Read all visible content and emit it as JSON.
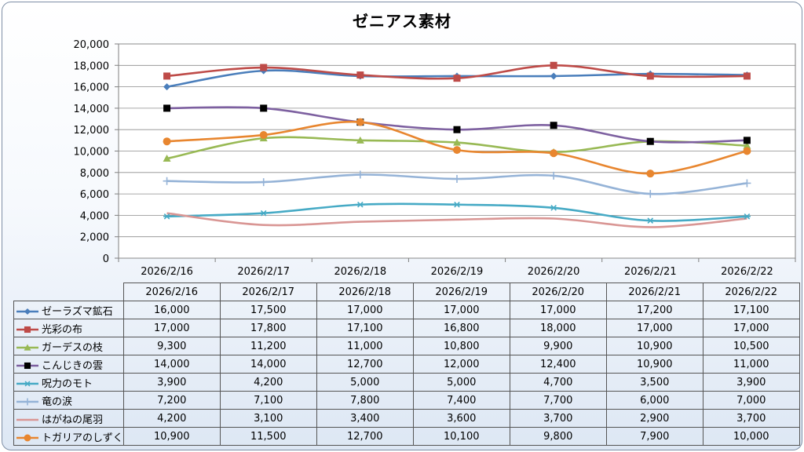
{
  "chart_data": {
    "type": "line",
    "title": "ゼニアス素材",
    "categories": [
      "2026/2/16",
      "2026/2/17",
      "2026/2/18",
      "2026/2/19",
      "2026/2/20",
      "2026/2/21",
      "2026/2/22"
    ],
    "ylim": [
      0,
      20000
    ],
    "yticks": [
      0,
      2000,
      4000,
      6000,
      8000,
      10000,
      12000,
      14000,
      16000,
      18000,
      20000
    ],
    "ytick_labels": [
      "0",
      "2,000",
      "4,000",
      "6,000",
      "8,000",
      "10,000",
      "12,000",
      "14,000",
      "16,000",
      "18,000",
      "20,000"
    ],
    "grid": true,
    "legend": "data-table",
    "series": [
      {
        "name": "ゼーラズマ鉱石",
        "color": "#4a7ebb",
        "marker": "diamond",
        "values": [
          16000,
          17500,
          17000,
          17000,
          17000,
          17200,
          17100
        ],
        "labels": [
          "16,000",
          "17,500",
          "17,000",
          "17,000",
          "17,000",
          "17,200",
          "17,100"
        ]
      },
      {
        "name": "光彩の布",
        "color": "#be4b48",
        "marker": "square",
        "values": [
          17000,
          17800,
          17100,
          16800,
          18000,
          17000,
          17000
        ],
        "labels": [
          "17,000",
          "17,800",
          "17,100",
          "16,800",
          "18,000",
          "17,000",
          "17,000"
        ]
      },
      {
        "name": "ガーデスの枝",
        "color": "#98b954",
        "marker": "triangle",
        "values": [
          9300,
          11200,
          11000,
          10800,
          9900,
          10900,
          10500
        ],
        "labels": [
          "9,300",
          "11,200",
          "11,000",
          "10,800",
          "9,900",
          "10,900",
          "10,500"
        ]
      },
      {
        "name": "こんじきの雲",
        "color": "#7d60a0",
        "marker": "square-black",
        "values": [
          14000,
          14000,
          12700,
          12000,
          12400,
          10900,
          11000
        ],
        "labels": [
          "14,000",
          "14,000",
          "12,700",
          "12,000",
          "12,400",
          "10,900",
          "11,000"
        ]
      },
      {
        "name": "呪力のモト",
        "color": "#46aac5",
        "marker": "star",
        "values": [
          3900,
          4200,
          5000,
          5000,
          4700,
          3500,
          3900
        ],
        "labels": [
          "3,900",
          "4,200",
          "5,000",
          "5,000",
          "4,700",
          "3,500",
          "3,900"
        ]
      },
      {
        "name": "竜の涙",
        "color": "#95b3d7",
        "marker": "plus",
        "values": [
          7200,
          7100,
          7800,
          7400,
          7700,
          6000,
          7000
        ],
        "labels": [
          "7,200",
          "7,100",
          "7,800",
          "7,400",
          "7,700",
          "6,000",
          "7,000"
        ]
      },
      {
        "name": "はがねの尾羽",
        "color": "#d99694",
        "marker": "none",
        "values": [
          4200,
          3100,
          3400,
          3600,
          3700,
          2900,
          3700
        ],
        "labels": [
          "4,200",
          "3,100",
          "3,400",
          "3,600",
          "3,700",
          "2,900",
          "3,700"
        ]
      },
      {
        "name": "トガリアのしずく",
        "color": "#e8862f",
        "marker": "circle",
        "values": [
          10900,
          11500,
          12700,
          10100,
          9800,
          7900,
          10000
        ],
        "labels": [
          "10,900",
          "11,500",
          "12,700",
          "10,100",
          "9,800",
          "7,900",
          "10,000"
        ]
      }
    ]
  }
}
